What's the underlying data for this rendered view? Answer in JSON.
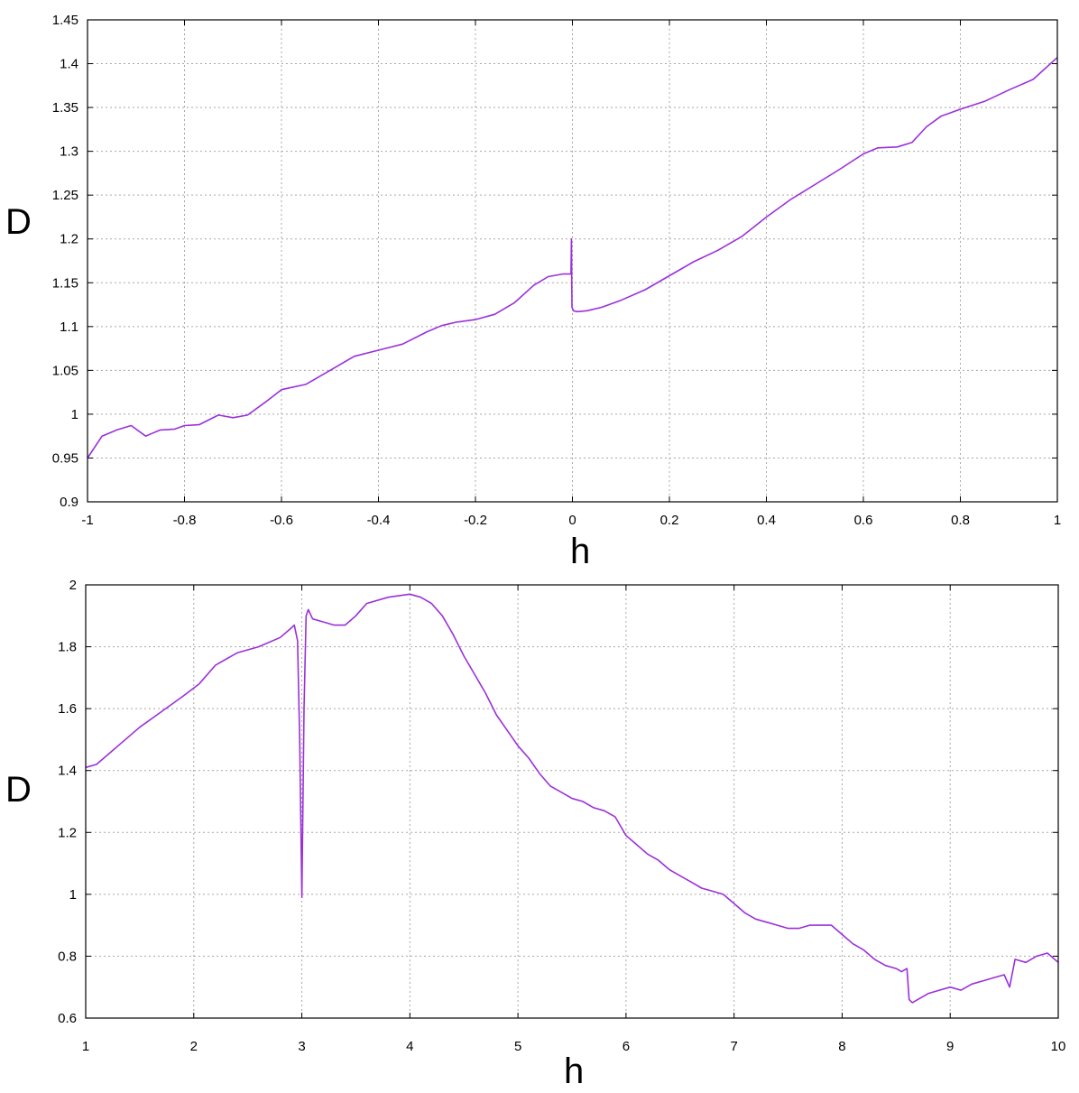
{
  "colors": {
    "series": "#9b30d9",
    "grid": "#a8a8a8",
    "frame": "#000000"
  },
  "chart_data": [
    {
      "type": "line",
      "title": "",
      "xlabel": "h",
      "ylabel": "D",
      "xlim": [
        -1,
        1
      ],
      "ylim": [
        0.9,
        1.45
      ],
      "grid": true,
      "xticks": [
        -1,
        -0.8,
        -0.6,
        -0.4,
        -0.2,
        0,
        0.2,
        0.4,
        0.6,
        0.8,
        1
      ],
      "xtick_labels": [
        "-1",
        "-0.8",
        "-0.6",
        "-0.4",
        "-0.2",
        "0",
        "0.2",
        "0.4",
        "0.6",
        "0.8",
        "1"
      ],
      "yticks": [
        0.9,
        0.95,
        1,
        1.05,
        1.1,
        1.15,
        1.2,
        1.25,
        1.3,
        1.35,
        1.4,
        1.45
      ],
      "ytick_labels": [
        "0.9",
        "0.95",
        "1",
        "1.05",
        "1.1",
        "1.15",
        "1.2",
        "1.25",
        "1.3",
        "1.35",
        "1.4",
        "1.45"
      ],
      "series": [
        {
          "x": [
            -1,
            -0.97,
            -0.94,
            -0.91,
            -0.88,
            -0.85,
            -0.82,
            -0.8,
            -0.77,
            -0.73,
            -0.7,
            -0.67,
            -0.63,
            -0.6,
            -0.55,
            -0.5,
            -0.45,
            -0.4,
            -0.35,
            -0.3,
            -0.27,
            -0.24,
            -0.2,
            -0.16,
            -0.12,
            -0.08,
            -0.05,
            -0.02,
            -0.003,
            -0.002,
            -0.001,
            0.002,
            0.01,
            0.03,
            0.06,
            0.1,
            0.15,
            0.2,
            0.25,
            0.3,
            0.35,
            0.4,
            0.45,
            0.5,
            0.55,
            0.6,
            0.63,
            0.67,
            0.7,
            0.73,
            0.76,
            0.8,
            0.85,
            0.9,
            0.95,
            1
          ],
          "y": [
            0.95,
            0.975,
            0.982,
            0.987,
            0.975,
            0.982,
            0.983,
            0.987,
            0.988,
            0.999,
            0.996,
            0.999,
            1.015,
            1.028,
            1.034,
            1.05,
            1.066,
            1.073,
            1.08,
            1.094,
            1.101,
            1.105,
            1.108,
            1.114,
            1.127,
            1.147,
            1.157,
            1.16,
            1.16,
            1.2,
            1.122,
            1.118,
            1.117,
            1.118,
            1.122,
            1.13,
            1.142,
            1.158,
            1.174,
            1.187,
            1.203,
            1.225,
            1.245,
            1.262,
            1.279,
            1.297,
            1.304,
            1.305,
            1.31,
            1.328,
            1.34,
            1.348,
            1.357,
            1.37,
            1.382,
            1.407
          ]
        }
      ]
    },
    {
      "type": "line",
      "title": "",
      "xlabel": "h",
      "ylabel": "D",
      "xlim": [
        1,
        10
      ],
      "ylim": [
        0.6,
        2
      ],
      "grid": true,
      "xticks": [
        1,
        2,
        3,
        4,
        5,
        6,
        7,
        8,
        9,
        10
      ],
      "xtick_labels": [
        "1",
        "2",
        "3",
        "4",
        "5",
        "6",
        "7",
        "8",
        "9",
        "10"
      ],
      "yticks": [
        0.6,
        0.8,
        1,
        1.2,
        1.4,
        1.6,
        1.8,
        2
      ],
      "ytick_labels": [
        "0.6",
        "0.8",
        "1",
        "1.2",
        "1.4",
        "1.6",
        "1.8",
        "2"
      ],
      "series": [
        {
          "x": [
            1,
            1.1,
            1.3,
            1.5,
            1.7,
            1.9,
            2.05,
            2.2,
            2.4,
            2.6,
            2.8,
            2.9,
            2.93,
            2.96,
            2.98,
            3.0,
            3.02,
            3.04,
            3.06,
            3.1,
            3.2,
            3.3,
            3.4,
            3.5,
            3.6,
            3.8,
            4.0,
            4.1,
            4.2,
            4.3,
            4.4,
            4.5,
            4.6,
            4.7,
            4.8,
            4.9,
            5.0,
            5.1,
            5.2,
            5.3,
            5.4,
            5.5,
            5.6,
            5.7,
            5.8,
            5.9,
            5.95,
            6.0,
            6.1,
            6.2,
            6.3,
            6.4,
            6.5,
            6.6,
            6.7,
            6.8,
            6.9,
            7.0,
            7.1,
            7.2,
            7.3,
            7.4,
            7.5,
            7.6,
            7.7,
            7.8,
            7.9,
            8.0,
            8.1,
            8.2,
            8.3,
            8.4,
            8.5,
            8.55,
            8.6,
            8.62,
            8.65,
            8.7,
            8.8,
            8.9,
            9.0,
            9.1,
            9.2,
            9.3,
            9.4,
            9.5,
            9.55,
            9.6,
            9.7,
            9.8,
            9.9,
            10.0
          ],
          "y": [
            1.41,
            1.42,
            1.48,
            1.54,
            1.59,
            1.64,
            1.68,
            1.74,
            1.78,
            1.8,
            1.83,
            1.86,
            1.87,
            1.82,
            1.5,
            0.99,
            1.6,
            1.9,
            1.92,
            1.89,
            1.88,
            1.87,
            1.87,
            1.9,
            1.94,
            1.96,
            1.97,
            1.96,
            1.94,
            1.9,
            1.84,
            1.77,
            1.71,
            1.65,
            1.58,
            1.53,
            1.48,
            1.44,
            1.39,
            1.35,
            1.33,
            1.31,
            1.3,
            1.28,
            1.27,
            1.25,
            1.22,
            1.19,
            1.16,
            1.13,
            1.11,
            1.08,
            1.06,
            1.04,
            1.02,
            1.01,
            1.0,
            0.97,
            0.94,
            0.92,
            0.91,
            0.9,
            0.89,
            0.89,
            0.9,
            0.9,
            0.9,
            0.87,
            0.84,
            0.82,
            0.79,
            0.77,
            0.76,
            0.75,
            0.76,
            0.66,
            0.65,
            0.66,
            0.68,
            0.69,
            0.7,
            0.69,
            0.71,
            0.72,
            0.73,
            0.74,
            0.7,
            0.79,
            0.78,
            0.8,
            0.81,
            0.78
          ]
        }
      ]
    }
  ]
}
